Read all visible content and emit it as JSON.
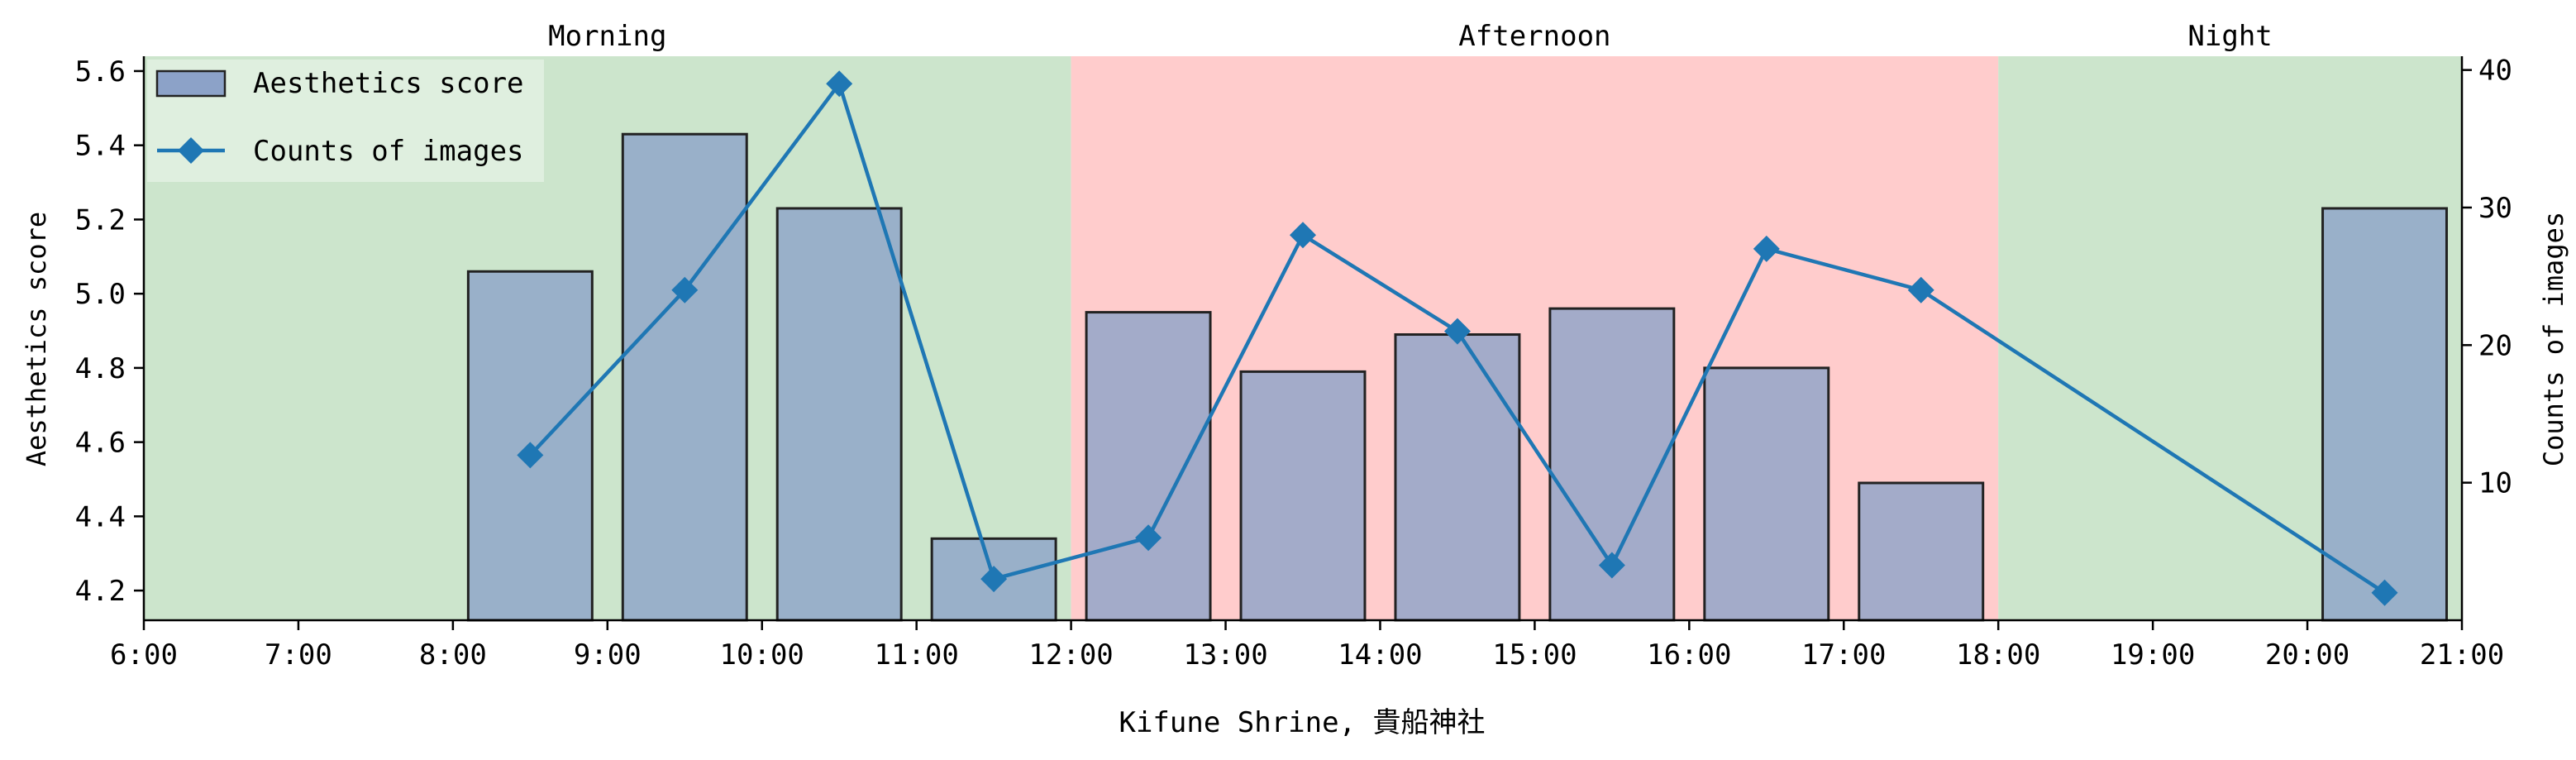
{
  "chart_data": {
    "type": "bar",
    "xlabel": "Kifune Shrine, 貴船神社",
    "ylabel_left": "Aesthetics score",
    "ylabel_right": "Counts of images",
    "x_range": [
      "6:00",
      "21:00"
    ],
    "x_ticks": [
      "6:00",
      "7:00",
      "8:00",
      "9:00",
      "10:00",
      "11:00",
      "12:00",
      "13:00",
      "14:00",
      "15:00",
      "16:00",
      "17:00",
      "18:00",
      "19:00",
      "20:00",
      "21:00"
    ],
    "ylim_left": [
      4.12,
      5.64
    ],
    "yticks_left": [
      "4.2",
      "4.4",
      "4.6",
      "4.8",
      "5.0",
      "5.2",
      "5.4",
      "5.6"
    ],
    "ylim_right": [
      0,
      41
    ],
    "yticks_right": [
      "10",
      "20",
      "30",
      "40"
    ],
    "periods": [
      {
        "label": "Morning",
        "start": "6:00",
        "end": "12:00",
        "color": "#cce5cc"
      },
      {
        "label": "Afternoon",
        "start": "12:00",
        "end": "18:00",
        "color": "#ffcccc"
      },
      {
        "label": "Night",
        "start": "18:00",
        "end": "21:00",
        "color": "#cce5cc"
      }
    ],
    "bars": {
      "name": "Aesthetics score",
      "color": "#8ca2c8",
      "hours": [
        "8:30",
        "9:30",
        "10:30",
        "11:30",
        "12:30",
        "13:30",
        "14:30",
        "15:30",
        "16:30",
        "17:30",
        "20:30"
      ],
      "values": [
        5.06,
        5.43,
        5.23,
        4.34,
        4.95,
        4.79,
        4.89,
        4.96,
        4.8,
        4.49,
        5.23
      ]
    },
    "line": {
      "name": "Counts of images",
      "color": "#1f77b4",
      "hours": [
        "8:30",
        "9:30",
        "10:30",
        "11:30",
        "12:30",
        "13:30",
        "14:30",
        "15:30",
        "16:30",
        "17:30",
        "20:30"
      ],
      "values": [
        12,
        24,
        39,
        3,
        6,
        28,
        21,
        4,
        27,
        24,
        2
      ]
    },
    "legend": "top-left",
    "grid": false
  }
}
